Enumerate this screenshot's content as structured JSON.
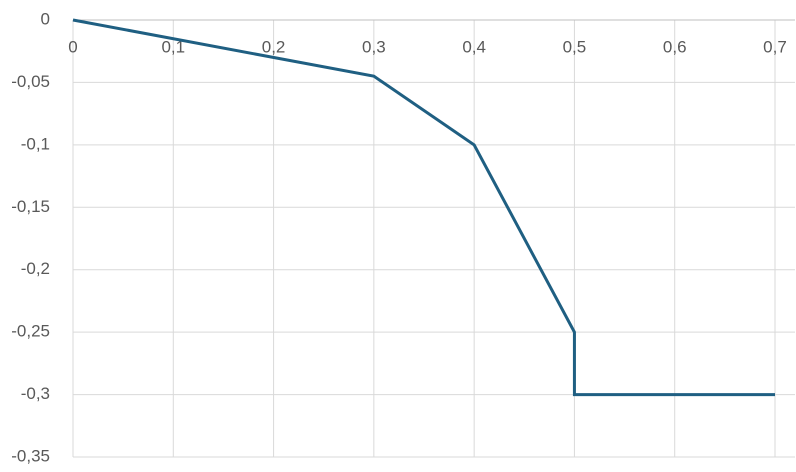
{
  "chart_data": {
    "type": "line",
    "x": [
      0,
      0.3,
      0.4,
      0.5,
      0.5,
      0.7
    ],
    "values": [
      0,
      -0.045,
      -0.1,
      -0.25,
      -0.3,
      -0.3
    ],
    "color": "#1f5f82",
    "xlim": [
      0,
      0.7
    ],
    "ylim": [
      -0.35,
      0
    ],
    "xticks": [
      0,
      {
        "value": 0.1,
        "label": "0,1"
      },
      {
        "value": 0.2,
        "label": "0,2"
      },
      {
        "value": 0.3,
        "label": "0,3"
      },
      {
        "value": 0.4,
        "label": "0,4"
      },
      {
        "value": 0.5,
        "label": "0,5"
      },
      {
        "value": 0.6,
        "label": "0,6"
      },
      {
        "value": 0.7,
        "label": "0,7"
      }
    ],
    "yticks": [
      0,
      {
        "value": -0.05,
        "label": "-0,05"
      },
      {
        "value": -0.1,
        "label": "-0,1"
      },
      {
        "value": -0.15,
        "label": "-0,15"
      },
      {
        "value": -0.2,
        "label": "-0,2"
      },
      {
        "value": -0.25,
        "label": "-0,25"
      },
      {
        "value": -0.3,
        "label": "-0,3"
      },
      {
        "value": -0.35,
        "label": "-0,35"
      }
    ],
    "grid": true
  }
}
